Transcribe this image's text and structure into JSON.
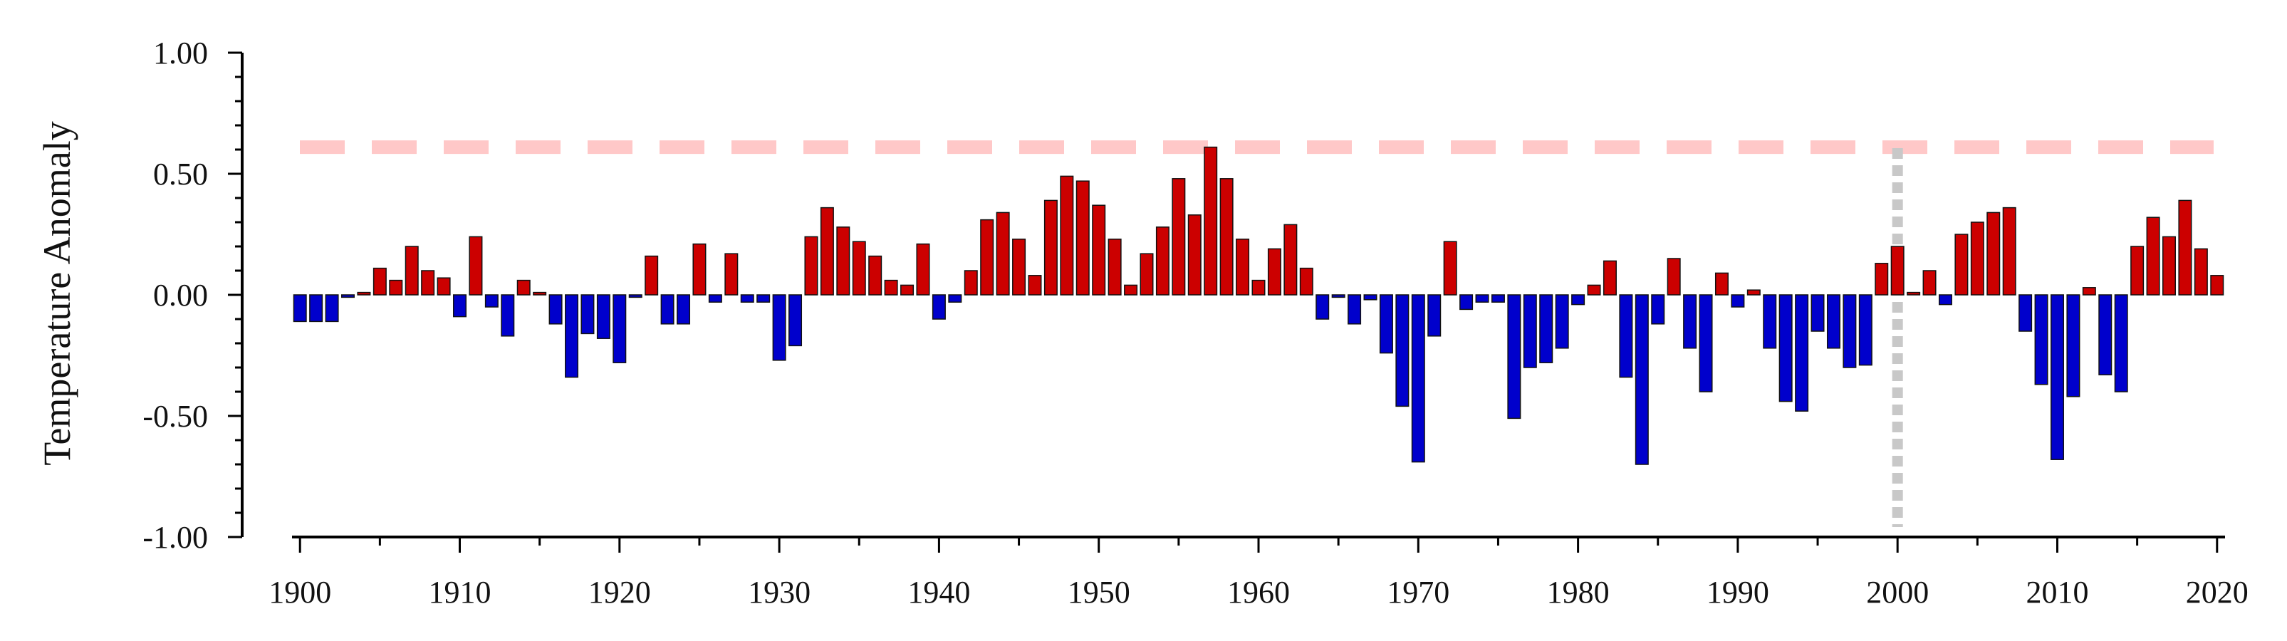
{
  "chart_data": {
    "type": "bar",
    "title": "",
    "xlabel": "",
    "ylabel": "Temperature Anomaly",
    "xlim": [
      1899.5,
      2020.5
    ],
    "ylim": [
      -1.0,
      1.0
    ],
    "x_ticks": [
      1900,
      1910,
      1920,
      1930,
      1940,
      1950,
      1960,
      1970,
      1980,
      1990,
      2000,
      2010,
      2020
    ],
    "x_tick_labels": [
      "1900",
      "1910",
      "1920",
      "1930",
      "1940",
      "1950",
      "1960",
      "1970",
      "1980",
      "1990",
      "2000",
      "2010",
      "2020"
    ],
    "y_ticks": [
      -1.0,
      -0.5,
      0.0,
      0.5,
      1.0
    ],
    "y_tick_labels": [
      "-1.00",
      "-0.50",
      "0.00",
      "0.50",
      "1.00"
    ],
    "grid": false,
    "legend": "none",
    "colors": {
      "positive": "#cc0000",
      "negative": "#0000cc",
      "bar_edge": "#111111",
      "reference_line": "#ffc8c8",
      "vertical_marker": "#c8c8c8"
    },
    "reference_line": {
      "orientation": "horizontal",
      "y": 0.61,
      "style": "dashed"
    },
    "vertical_marker": {
      "orientation": "vertical",
      "x": 2000,
      "style": "dotted"
    },
    "x": [
      1900,
      1901,
      1902,
      1903,
      1904,
      1905,
      1906,
      1907,
      1908,
      1909,
      1910,
      1911,
      1912,
      1913,
      1914,
      1915,
      1916,
      1917,
      1918,
      1919,
      1920,
      1921,
      1922,
      1923,
      1924,
      1925,
      1926,
      1927,
      1928,
      1929,
      1930,
      1931,
      1932,
      1933,
      1934,
      1935,
      1936,
      1937,
      1938,
      1939,
      1940,
      1941,
      1942,
      1943,
      1944,
      1945,
      1946,
      1947,
      1948,
      1949,
      1950,
      1951,
      1952,
      1953,
      1954,
      1955,
      1956,
      1957,
      1958,
      1959,
      1960,
      1961,
      1962,
      1963,
      1964,
      1965,
      1966,
      1967,
      1968,
      1969,
      1970,
      1971,
      1972,
      1973,
      1974,
      1975,
      1976,
      1977,
      1978,
      1979,
      1980,
      1981,
      1982,
      1983,
      1984,
      1985,
      1986,
      1987,
      1988,
      1989,
      1990,
      1991,
      1992,
      1993,
      1994,
      1995,
      1996,
      1997,
      1998,
      1999,
      2000,
      2001,
      2002,
      2003,
      2004,
      2005,
      2006,
      2007,
      2008,
      2009,
      2010,
      2011,
      2012,
      2013,
      2014,
      2015,
      2016,
      2017,
      2018,
      2019,
      2020
    ],
    "values": [
      -0.11,
      -0.11,
      -0.11,
      -0.01,
      0.01,
      0.11,
      0.06,
      0.2,
      0.1,
      0.07,
      -0.09,
      0.24,
      -0.05,
      -0.17,
      0.06,
      0.01,
      -0.12,
      -0.34,
      -0.16,
      -0.18,
      -0.28,
      -0.01,
      0.16,
      -0.12,
      -0.12,
      0.21,
      -0.03,
      0.17,
      -0.03,
      -0.03,
      -0.27,
      -0.21,
      0.24,
      0.36,
      0.28,
      0.22,
      0.16,
      0.06,
      0.04,
      0.21,
      -0.1,
      -0.03,
      0.1,
      0.31,
      0.34,
      0.23,
      0.08,
      0.39,
      0.49,
      0.47,
      0.37,
      0.23,
      0.04,
      0.17,
      0.28,
      0.48,
      0.33,
      0.61,
      0.48,
      0.23,
      0.06,
      0.19,
      0.29,
      0.11,
      -0.1,
      -0.01,
      -0.12,
      -0.02,
      -0.24,
      -0.46,
      -0.69,
      -0.17,
      0.22,
      -0.06,
      -0.03,
      -0.03,
      -0.51,
      -0.3,
      -0.28,
      -0.22,
      -0.04,
      0.04,
      0.14,
      -0.34,
      -0.7,
      -0.12,
      0.15,
      -0.22,
      -0.4,
      0.09,
      -0.05,
      0.02,
      -0.22,
      -0.44,
      -0.48,
      -0.15,
      -0.22,
      -0.3,
      -0.29,
      0.13,
      0.2,
      0.01,
      0.1,
      -0.04,
      0.25,
      0.3,
      0.34,
      0.36,
      -0.15,
      -0.37,
      -0.68,
      -0.42,
      0.03,
      -0.33,
      -0.4,
      0.2,
      0.32,
      0.24,
      0.39,
      0.19,
      0.08
    ]
  }
}
